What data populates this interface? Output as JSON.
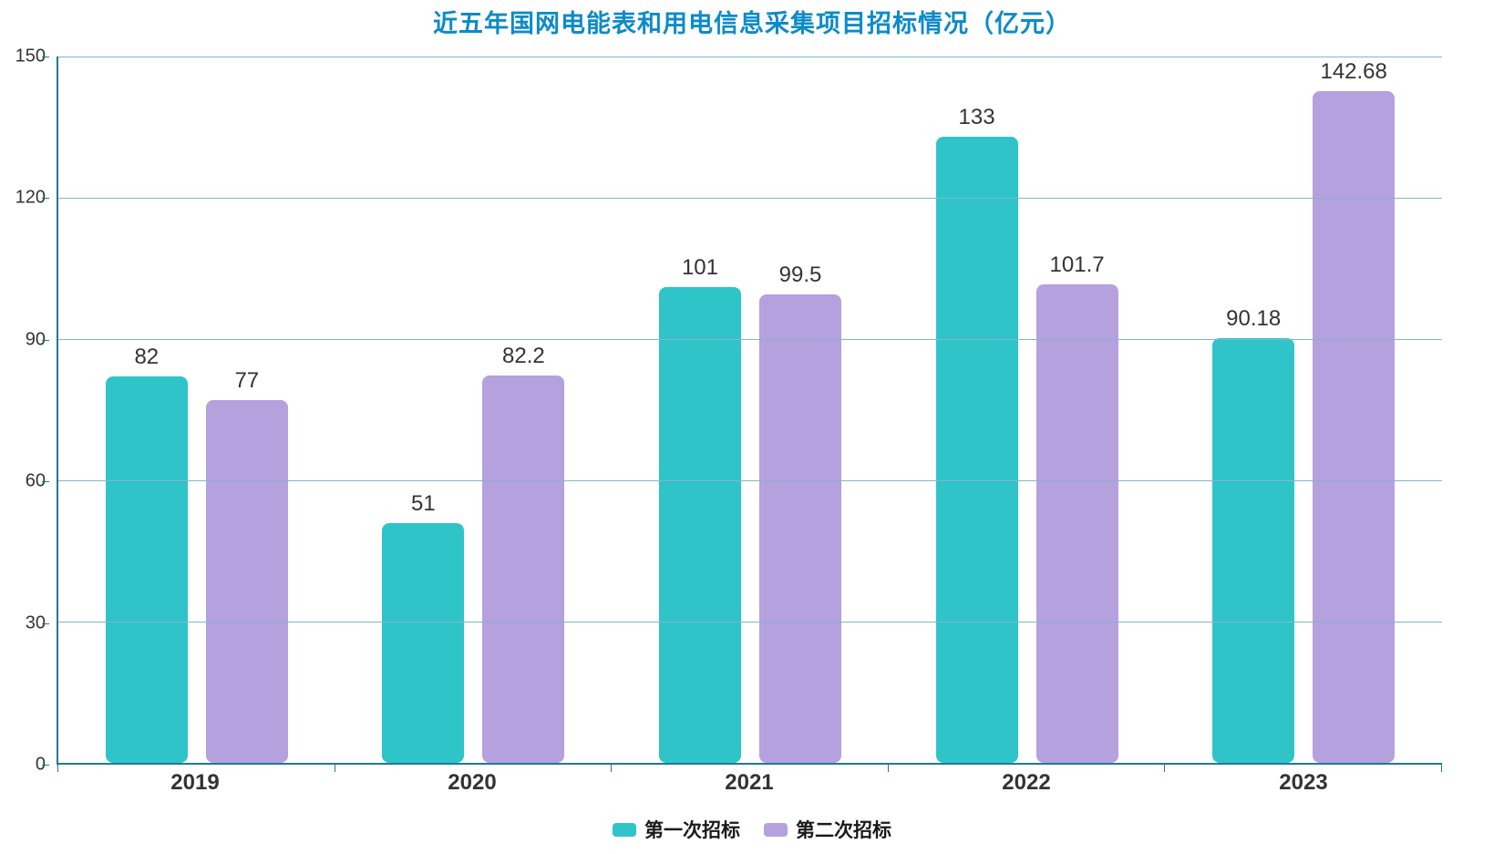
{
  "chart_data": {
    "type": "bar",
    "title": "近五年国网电能表和用电信息采集项目招标情况（亿元）",
    "categories": [
      "2019",
      "2020",
      "2021",
      "2022",
      "2023"
    ],
    "series": [
      {
        "name": "第一次招标",
        "color": "#2EC4C8",
        "values": [
          82,
          51,
          101,
          133,
          90.18
        ]
      },
      {
        "name": "第二次招标",
        "color": "#B4A1DE",
        "values": [
          77,
          82.2,
          99.5,
          101.7,
          142.68
        ]
      }
    ],
    "ylim": [
      0,
      150
    ],
    "yticks": [
      0,
      30,
      60,
      90,
      120,
      150
    ],
    "xlabel": "",
    "ylabel": "",
    "grid": true,
    "legend_position": "bottom",
    "value_labels": true
  },
  "colors": {
    "title": "#0D8BC7",
    "axis": "#1F7A96",
    "gridline": "#86B3CB",
    "text": "#333333",
    "legend_text": "#1A1A1A"
  }
}
